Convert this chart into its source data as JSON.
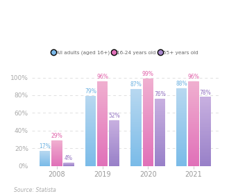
{
  "years": [
    "2008",
    "2019",
    "2020",
    "2021"
  ],
  "series": [
    {
      "name": "All adults (aged 16+)",
      "values": [
        17,
        79,
        87,
        88
      ],
      "color_top": "#b8d8f0",
      "color_bottom": "#7abbe8",
      "label_color": "#6ab0e0"
    },
    {
      "name": "16-24 years old",
      "values": [
        29,
        96,
        99,
        96
      ],
      "color_top": "#f0b0d0",
      "color_bottom": "#e070b8",
      "label_color": "#e060a8"
    },
    {
      "name": "55+ years old",
      "values": [
        4,
        52,
        76,
        78
      ],
      "color_top": "#c8b0e0",
      "color_bottom": "#9880c8",
      "label_color": "#9070c0"
    }
  ],
  "legend_dot_colors": [
    "#7ab8e8",
    "#e070b8",
    "#a888cc"
  ],
  "legend_labels": [
    "All adults (aged 16+)",
    "16-24 years old",
    "55+ years old"
  ],
  "ylabel_ticks": [
    0,
    20,
    40,
    60,
    80,
    100
  ],
  "ylabel_labels": [
    "0%",
    "20%",
    "40%",
    "60%",
    "80%",
    "100%"
  ],
  "source_text": "Source: Statista",
  "background_color": "#ffffff",
  "grid_color": "#e0e0e0",
  "bar_width": 0.26,
  "bar_spacing": 0.005
}
